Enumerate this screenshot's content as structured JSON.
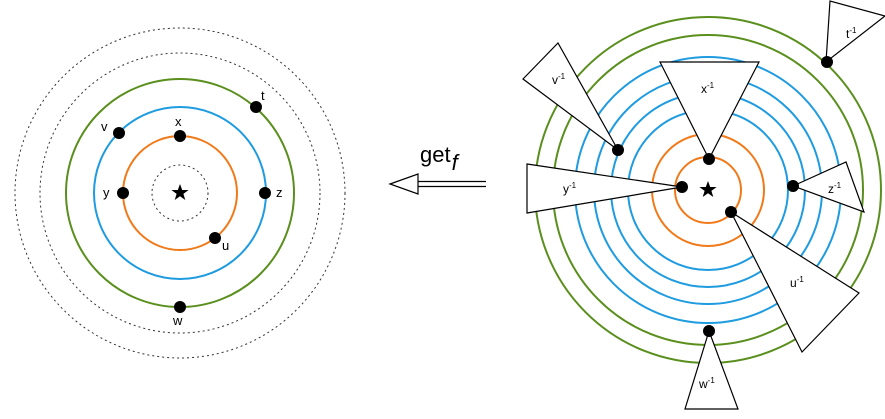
{
  "colors": {
    "green": "#5a8f1e",
    "blue": "#1f9be0",
    "orange": "#f07a1a",
    "dotted": "#333333"
  },
  "left": {
    "center_icon": "star-icon",
    "points": [
      {
        "label": "t"
      },
      {
        "label": "v"
      },
      {
        "label": "x"
      },
      {
        "label": "y"
      },
      {
        "label": "z"
      },
      {
        "label": "u"
      },
      {
        "label": "w"
      }
    ]
  },
  "arrow": {
    "label": "get",
    "subscript": "f",
    "icon": "double-arrow-left-icon"
  },
  "right": {
    "center_icon": "star-icon",
    "triangles": [
      {
        "base": "t",
        "sup": "-1"
      },
      {
        "base": "v",
        "sup": "-1"
      },
      {
        "base": "x",
        "sup": "-1"
      },
      {
        "base": "y",
        "sup": "-1"
      },
      {
        "base": "z",
        "sup": "-1"
      },
      {
        "base": "u",
        "sup": "-1"
      },
      {
        "base": "w",
        "sup": "-1"
      }
    ]
  }
}
